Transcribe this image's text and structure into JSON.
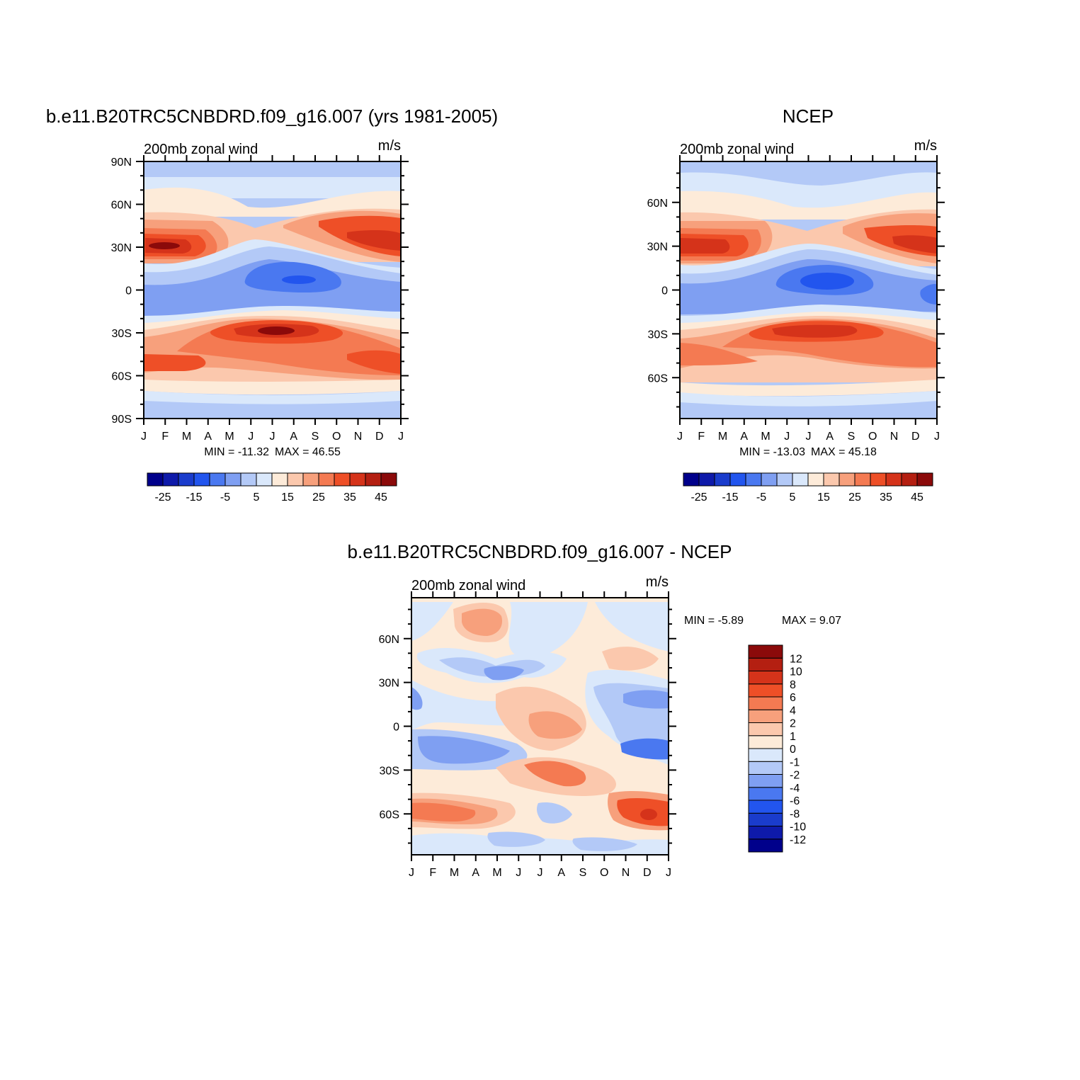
{
  "chart_data": [
    {
      "type": "heatmap",
      "title": "b.e11.B20TRC5CNBDRD.f09_g16.007 (yrs 1981-2005)",
      "subtitle_left": "200mb zonal wind",
      "subtitle_right": "m/s",
      "x_tick_labels": [
        "J",
        "F",
        "M",
        "A",
        "M",
        "J",
        "J",
        "A",
        "S",
        "O",
        "N",
        "D",
        "J"
      ],
      "y_tick_labels": [
        "90N",
        "60N",
        "30N",
        "0",
        "30S",
        "60S",
        "90S"
      ],
      "y_tick_values": [
        90,
        60,
        30,
        0,
        -30,
        -60,
        -90
      ],
      "ylim": [
        -90,
        90
      ],
      "min_label": "MIN = -11.32",
      "max_label": "MAX =  46.55",
      "min": -11.32,
      "max": 46.55,
      "colorbar": {
        "orientation": "horizontal",
        "levels": [
          -25,
          -20,
          -15,
          -10,
          -5,
          0,
          5,
          10,
          15,
          20,
          25,
          30,
          35,
          40,
          45
        ],
        "labels": [
          "-25",
          "-15",
          "-5",
          "5",
          "15",
          "25",
          "35",
          "45"
        ]
      }
    },
    {
      "type": "heatmap",
      "title": "NCEP",
      "subtitle_left": "200mb zonal wind",
      "subtitle_right": "m/s",
      "x_tick_labels": [
        "J",
        "F",
        "M",
        "A",
        "M",
        "J",
        "J",
        "A",
        "S",
        "O",
        "N",
        "D",
        "J"
      ],
      "y_tick_labels": [
        "60N",
        "30N",
        "0",
        "30S",
        "60S"
      ],
      "y_tick_values": [
        60,
        30,
        0,
        -30,
        -60
      ],
      "ylim": [
        -88,
        88
      ],
      "min_label": "MIN = -13.03",
      "max_label": "MAX =  45.18",
      "min": -13.03,
      "max": 45.18,
      "colorbar": {
        "orientation": "horizontal",
        "levels": [
          -25,
          -20,
          -15,
          -10,
          -5,
          0,
          5,
          10,
          15,
          20,
          25,
          30,
          35,
          40,
          45
        ],
        "labels": [
          "-25",
          "-15",
          "-5",
          "5",
          "15",
          "25",
          "35",
          "45"
        ]
      }
    },
    {
      "type": "heatmap",
      "title": "b.e11.B20TRC5CNBDRD.f09_g16.007 - NCEP",
      "subtitle_left": "200mb zonal wind",
      "subtitle_right": "m/s",
      "x_tick_labels": [
        "J",
        "F",
        "M",
        "A",
        "M",
        "J",
        "J",
        "A",
        "S",
        "O",
        "N",
        "D",
        "J"
      ],
      "y_tick_labels": [
        "60N",
        "30N",
        "0",
        "30S",
        "60S"
      ],
      "y_tick_values": [
        60,
        30,
        0,
        -30,
        -60
      ],
      "ylim": [
        -88,
        88
      ],
      "min_label": "MIN =   -5.89",
      "max_label": "MAX =    9.07",
      "min": -5.89,
      "max": 9.07,
      "colorbar": {
        "orientation": "vertical",
        "levels": [
          -12,
          -10,
          -8,
          -6,
          -4,
          -2,
          -1,
          0,
          1,
          2,
          4,
          6,
          8,
          10,
          12
        ],
        "labels": [
          "12",
          "10",
          "8",
          "6",
          "4",
          "2",
          "1",
          "0",
          "-1",
          "-2",
          "-4",
          "-6",
          "-8",
          "-10",
          "-12"
        ]
      }
    }
  ],
  "colors": {
    "palette": [
      "#00008b",
      "#0e1aaa",
      "#1a3ccc",
      "#2255ee",
      "#4a78f0",
      "#7f9ff2",
      "#b3c9f7",
      "#dae8fb",
      "#fdebd9",
      "#fbc8ad",
      "#f7a07c",
      "#f47a52",
      "#ee4f27",
      "#d5331a",
      "#b41f11",
      "#8b0a0a"
    ],
    "axis": "#000000"
  }
}
